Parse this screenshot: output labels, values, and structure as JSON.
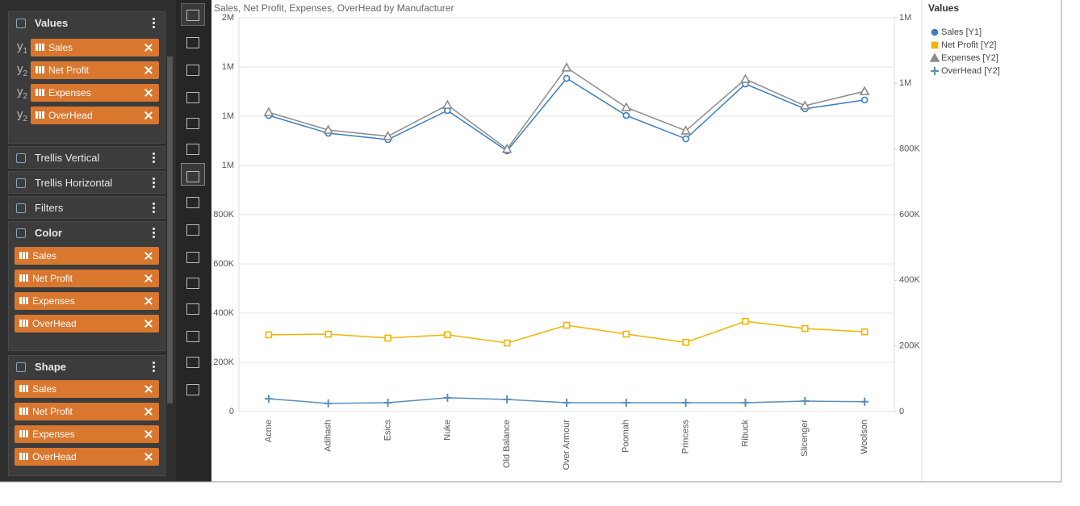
{
  "sidebar": {
    "sections": [
      {
        "title": "Values",
        "items": [
          {
            "axis": {
              "letter": "y",
              "sub": "1"
            },
            "label": "Sales"
          },
          {
            "axis": {
              "letter": "y",
              "sub": "2"
            },
            "label": "Net Profit"
          },
          {
            "axis": {
              "letter": "y",
              "sub": "2"
            },
            "label": "Expenses"
          },
          {
            "axis": {
              "letter": "y",
              "sub": "2"
            },
            "label": "OverHead"
          }
        ]
      },
      {
        "title": "Trellis Vertical",
        "items": []
      },
      {
        "title": "Trellis Horizontal",
        "items": []
      },
      {
        "title": "Filters",
        "items": []
      },
      {
        "title": "Color",
        "items": [
          {
            "label": "Sales"
          },
          {
            "label": "Net Profit"
          },
          {
            "label": "Expenses"
          },
          {
            "label": "OverHead"
          }
        ]
      },
      {
        "title": "Shape",
        "items": [
          {
            "label": "Sales"
          },
          {
            "label": "Net Profit"
          },
          {
            "label": "Expenses"
          },
          {
            "label": "OverHead"
          }
        ]
      }
    ]
  },
  "chart_data": {
    "type": "line",
    "title": "Sales, Net Profit, Expenses, OverHead by Manufacturer",
    "categories": [
      "Acme",
      "Adihash",
      "Esics",
      "Nuke",
      "Old Balance",
      "Over Armour",
      "Poomah",
      "Princess",
      "Ribuck",
      "Slicenger",
      "Woolson"
    ],
    "series": [
      {
        "name": "Sales [Y1]",
        "color": "#3a7dc1",
        "marker": "circle",
        "axis": "y",
        "values": [
          1203000,
          1131000,
          1105000,
          1223000,
          1059000,
          1354000,
          1203000,
          1108000,
          1331000,
          1230000,
          1266000
        ]
      },
      {
        "name": "Net Profit [Y2]",
        "color": "#f2b400",
        "marker": "square",
        "axis": "y2",
        "values": [
          234000,
          236000,
          224000,
          234000,
          209000,
          263000,
          236000,
          211000,
          275000,
          253000,
          243000
        ]
      },
      {
        "name": "Expenses [Y2]",
        "color": "#8c8c8c",
        "marker": "triangle",
        "axis": "y2",
        "values": [
          912000,
          858000,
          839000,
          934000,
          800000,
          1048000,
          927000,
          856000,
          1013000,
          932000,
          976000
        ]
      },
      {
        "name": "OverHead [Y2]",
        "color": "#5b8db8",
        "marker": "plus",
        "axis": "y2",
        "values": [
          39000,
          25000,
          27000,
          42000,
          37000,
          27000,
          27000,
          27000,
          27000,
          32000,
          30000
        ]
      }
    ],
    "ylim": [
      0,
      1600000
    ],
    "yticks": [
      0,
      {
        "value": 200000,
        "label": "200K"
      },
      {
        "value": 400000,
        "label": "400K"
      },
      {
        "value": 600000,
        "label": "600K"
      },
      {
        "value": 800000,
        "label": "800K"
      },
      {
        "value": 1000000,
        "label": "1M"
      },
      {
        "value": 1200000,
        "label": "1M"
      },
      {
        "value": 1400000,
        "label": "1M"
      },
      {
        "value": 1600000,
        "label": "2M"
      }
    ],
    "y2lim": [
      0,
      1200000
    ],
    "y2ticks": [
      0,
      {
        "value": 200000,
        "label": "200K"
      },
      {
        "value": 400000,
        "label": "400K"
      },
      {
        "value": 600000,
        "label": "600K"
      },
      {
        "value": 800000,
        "label": "800K"
      },
      {
        "value": 1000000,
        "label": "1M"
      },
      {
        "value": 1200000,
        "label": "1M"
      }
    ],
    "grid": true,
    "legend_title": "Values"
  }
}
